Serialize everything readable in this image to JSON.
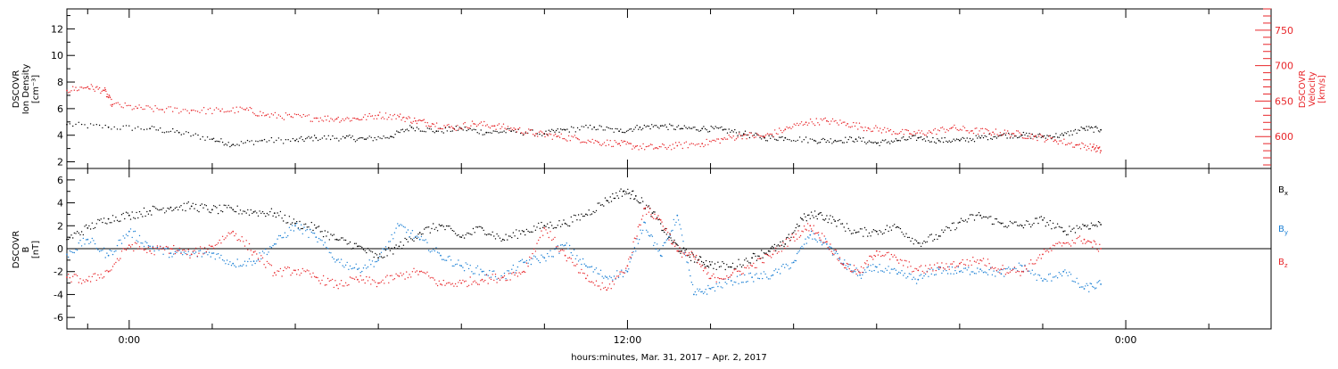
{
  "colors": {
    "black": "#000000",
    "red": "#e8262a",
    "blue": "#1a7fd4"
  },
  "chart_data": [
    {
      "type": "scatter",
      "panel": "top",
      "ylabel": [
        "DSCOVR",
        "Ion Density",
        "[cm⁻³]"
      ],
      "ylabel_right": [
        "DSCOVR",
        "Velocity",
        "[km/s]"
      ],
      "ylim": [
        1.5,
        13.5
      ],
      "ylim_right": [
        555,
        780
      ],
      "yticks": [
        2,
        4,
        6,
        8,
        10,
        12
      ],
      "yticks_right": [
        600,
        650,
        700,
        750
      ],
      "x_unit": "hours since 2017-03-31 00:00",
      "xlim": [
        -1.5,
        27.5
      ],
      "series": [
        {
          "axis": "left",
          "color": "black",
          "points": [
            [
              -1.5,
              4.8
            ],
            [
              -0.5,
              4.6
            ],
            [
              0.5,
              4.5
            ],
            [
              1.2,
              4.2
            ],
            [
              2.0,
              3.7
            ],
            [
              2.5,
              3.3
            ],
            [
              3.2,
              3.6
            ],
            [
              4.0,
              3.6
            ],
            [
              4.5,
              3.8
            ],
            [
              5.2,
              3.8
            ],
            [
              5.7,
              3.7
            ],
            [
              6.3,
              3.9
            ],
            [
              6.8,
              4.6
            ],
            [
              7.4,
              4.3
            ],
            [
              8.0,
              4.5
            ],
            [
              8.6,
              4.2
            ],
            [
              9.2,
              4.3
            ],
            [
              10.0,
              4.1
            ],
            [
              10.5,
              4.4
            ],
            [
              11.2,
              4.6
            ],
            [
              11.8,
              4.3
            ],
            [
              12.3,
              4.6
            ],
            [
              12.8,
              4.7
            ],
            [
              13.3,
              4.5
            ],
            [
              13.8,
              4.5
            ],
            [
              14.3,
              4.4
            ],
            [
              14.8,
              4.1
            ],
            [
              15.3,
              3.8
            ],
            [
              15.8,
              3.8
            ],
            [
              16.5,
              3.6
            ],
            [
              17.0,
              3.6
            ],
            [
              17.5,
              3.7
            ],
            [
              18.0,
              3.4
            ],
            [
              18.5,
              3.6
            ],
            [
              19.0,
              3.8
            ],
            [
              19.5,
              3.6
            ],
            [
              20.0,
              3.6
            ],
            [
              20.5,
              3.8
            ],
            [
              21.0,
              4.0
            ],
            [
              21.5,
              4.0
            ],
            [
              22.0,
              3.9
            ],
            [
              22.5,
              4.0
            ],
            [
              23.0,
              4.5
            ],
            [
              23.4,
              4.4
            ]
          ]
        },
        {
          "axis": "right",
          "color": "red",
          "points": [
            [
              -1.5,
              665
            ],
            [
              -1.0,
              670
            ],
            [
              -0.6,
              665
            ],
            [
              -0.4,
              645
            ],
            [
              0.2,
              640
            ],
            [
              0.8,
              638
            ],
            [
              1.5,
              637
            ],
            [
              2.2,
              636
            ],
            [
              2.8,
              638
            ],
            [
              3.3,
              630
            ],
            [
              3.9,
              628
            ],
            [
              4.5,
              626
            ],
            [
              5.0,
              625
            ],
            [
              5.5,
              625
            ],
            [
              6.0,
              630
            ],
            [
              6.5,
              628
            ],
            [
              6.9,
              622
            ],
            [
              7.3,
              618
            ],
            [
              7.8,
              612
            ],
            [
              8.3,
              618
            ],
            [
              8.8,
              615
            ],
            [
              9.3,
              610
            ],
            [
              9.8,
              604
            ],
            [
              10.3,
              600
            ],
            [
              10.8,
              597
            ],
            [
              11.3,
              592
            ],
            [
              11.8,
              590
            ],
            [
              12.2,
              586
            ],
            [
              12.7,
              584
            ],
            [
              13.2,
              587
            ],
            [
              13.8,
              590
            ],
            [
              14.3,
              596
            ],
            [
              14.8,
              602
            ],
            [
              15.3,
              600
            ],
            [
              15.8,
              610
            ],
            [
              16.3,
              620
            ],
            [
              16.8,
              622
            ],
            [
              17.3,
              618
            ],
            [
              17.8,
              612
            ],
            [
              18.3,
              608
            ],
            [
              18.8,
              604
            ],
            [
              19.3,
              606
            ],
            [
              19.8,
              612
            ],
            [
              20.3,
              608
            ],
            [
              20.8,
              606
            ],
            [
              21.3,
              604
            ],
            [
              21.8,
              600
            ],
            [
              22.3,
              595
            ],
            [
              22.8,
              588
            ],
            [
              23.2,
              585
            ],
            [
              23.4,
              580
            ]
          ]
        }
      ]
    },
    {
      "type": "scatter",
      "panel": "bottom",
      "ylabel": [
        "DSCOVR",
        "B",
        "[nT]"
      ],
      "ylim": [
        -7,
        7
      ],
      "yticks": [
        -6,
        -4,
        -2,
        0,
        2,
        4,
        6
      ],
      "x_unit": "hours since 2017-03-31 00:00",
      "xlim": [
        -1.5,
        27.5
      ],
      "xtick_labels": [
        "0:00",
        "12:00",
        "0:00"
      ],
      "xtick_values": [
        0,
        12,
        24
      ],
      "xlabel": "hours:minutes, Mar. 31, 2017 – Apr. 2, 2017",
      "legend": [
        {
          "name": "Bx",
          "sub": "x",
          "color": "black"
        },
        {
          "name": "By",
          "sub": "y",
          "color": "blue"
        },
        {
          "name": "Bz",
          "sub": "z",
          "color": "red"
        }
      ],
      "series": [
        {
          "name": "Bx",
          "color": "black",
          "points": [
            [
              -1.5,
              0.8
            ],
            [
              -1.0,
              1.8
            ],
            [
              -0.5,
              2.6
            ],
            [
              0.0,
              2.9
            ],
            [
              0.5,
              3.3
            ],
            [
              1.0,
              3.6
            ],
            [
              1.5,
              3.7
            ],
            [
              2.0,
              3.4
            ],
            [
              2.5,
              3.4
            ],
            [
              3.0,
              3.2
            ],
            [
              3.5,
              3.1
            ],
            [
              4.0,
              2.2
            ],
            [
              4.5,
              1.8
            ],
            [
              5.0,
              0.8
            ],
            [
              5.5,
              0.2
            ],
            [
              6.0,
              -0.8
            ],
            [
              6.5,
              0.2
            ],
            [
              7.0,
              1.4
            ],
            [
              7.5,
              2.0
            ],
            [
              8.0,
              1.0
            ],
            [
              8.5,
              1.8
            ],
            [
              9.0,
              0.8
            ],
            [
              9.5,
              1.5
            ],
            [
              10.0,
              2.0
            ],
            [
              10.5,
              2.2
            ],
            [
              11.0,
              3.0
            ],
            [
              11.5,
              4.2
            ],
            [
              11.9,
              5.0
            ],
            [
              12.2,
              4.6
            ],
            [
              12.6,
              3.1
            ],
            [
              13.0,
              1.0
            ],
            [
              13.3,
              -0.2
            ],
            [
              13.7,
              -1.0
            ],
            [
              14.0,
              -1.4
            ],
            [
              14.5,
              -1.6
            ],
            [
              15.0,
              -0.8
            ],
            [
              15.4,
              -0.2
            ],
            [
              15.8,
              0.4
            ],
            [
              16.2,
              2.6
            ],
            [
              16.6,
              3.0
            ],
            [
              17.0,
              2.4
            ],
            [
              17.5,
              1.4
            ],
            [
              18.0,
              1.5
            ],
            [
              18.5,
              1.9
            ],
            [
              19.0,
              0.5
            ],
            [
              19.5,
              1.1
            ],
            [
              20.0,
              2.3
            ],
            [
              20.5,
              2.9
            ],
            [
              21.0,
              2.2
            ],
            [
              21.5,
              2.0
            ],
            [
              22.0,
              2.5
            ],
            [
              22.5,
              1.5
            ],
            [
              23.0,
              2.0
            ],
            [
              23.4,
              2.1
            ]
          ]
        },
        {
          "name": "By",
          "color": "blue",
          "points": [
            [
              -1.5,
              -0.5
            ],
            [
              -1.0,
              0.8
            ],
            [
              -0.5,
              -0.6
            ],
            [
              0.0,
              1.5
            ],
            [
              0.5,
              0.2
            ],
            [
              1.0,
              -0.4
            ],
            [
              1.5,
              -0.5
            ],
            [
              2.0,
              -0.4
            ],
            [
              2.5,
              -1.3
            ],
            [
              3.0,
              -1.1
            ],
            [
              3.5,
              0.4
            ],
            [
              4.0,
              2.0
            ],
            [
              4.5,
              1.0
            ],
            [
              5.0,
              -1.0
            ],
            [
              5.5,
              -1.8
            ],
            [
              6.0,
              -1.0
            ],
            [
              6.5,
              2.0
            ],
            [
              7.0,
              0.8
            ],
            [
              7.5,
              -0.6
            ],
            [
              8.0,
              -1.5
            ],
            [
              8.5,
              -2.0
            ],
            [
              9.0,
              -2.5
            ],
            [
              9.5,
              -1.2
            ],
            [
              10.0,
              -0.8
            ],
            [
              10.5,
              0.3
            ],
            [
              11.0,
              -1.5
            ],
            [
              11.5,
              -2.5
            ],
            [
              12.0,
              -2.0
            ],
            [
              12.4,
              2.3
            ],
            [
              12.8,
              -0.6
            ],
            [
              13.2,
              2.9
            ],
            [
              13.6,
              -4.0
            ],
            [
              14.0,
              -3.5
            ],
            [
              14.5,
              -2.8
            ],
            [
              15.0,
              -2.5
            ],
            [
              15.5,
              -2.3
            ],
            [
              16.0,
              -1.2
            ],
            [
              16.4,
              1.2
            ],
            [
              16.8,
              0.4
            ],
            [
              17.2,
              -1.3
            ],
            [
              17.6,
              -2.3
            ],
            [
              18.0,
              -1.6
            ],
            [
              18.5,
              -2.2
            ],
            [
              19.0,
              -2.7
            ],
            [
              19.5,
              -1.8
            ],
            [
              20.0,
              -2.0
            ],
            [
              20.5,
              -1.8
            ],
            [
              21.0,
              -2.2
            ],
            [
              21.5,
              -1.5
            ],
            [
              22.0,
              -2.8
            ],
            [
              22.5,
              -2.0
            ],
            [
              23.0,
              -3.5
            ],
            [
              23.4,
              -3.1
            ]
          ]
        },
        {
          "name": "Bz",
          "color": "red",
          "points": [
            [
              -1.5,
              -2.5
            ],
            [
              -1.0,
              -2.8
            ],
            [
              -0.5,
              -2.0
            ],
            [
              0.0,
              0.3
            ],
            [
              0.5,
              -0.2
            ],
            [
              1.0,
              0.0
            ],
            [
              1.5,
              -0.5
            ],
            [
              2.0,
              0.2
            ],
            [
              2.5,
              1.5
            ],
            [
              3.0,
              -0.3
            ],
            [
              3.5,
              -2.1
            ],
            [
              4.0,
              -1.9
            ],
            [
              4.5,
              -2.5
            ],
            [
              5.0,
              -3.2
            ],
            [
              5.5,
              -2.7
            ],
            [
              6.0,
              -3.0
            ],
            [
              6.5,
              -2.4
            ],
            [
              7.0,
              -2.0
            ],
            [
              7.5,
              -3.1
            ],
            [
              8.0,
              -3.0
            ],
            [
              8.5,
              -2.7
            ],
            [
              9.0,
              -2.5
            ],
            [
              9.5,
              -2.0
            ],
            [
              10.0,
              1.8
            ],
            [
              10.5,
              -0.6
            ],
            [
              11.0,
              -2.6
            ],
            [
              11.5,
              -3.6
            ],
            [
              12.0,
              -1.5
            ],
            [
              12.4,
              3.5
            ],
            [
              12.8,
              2.5
            ],
            [
              13.2,
              -0.2
            ],
            [
              13.6,
              -0.7
            ],
            [
              14.0,
              -2.6
            ],
            [
              14.5,
              -2.3
            ],
            [
              15.0,
              -1.5
            ],
            [
              15.5,
              -0.5
            ],
            [
              16.0,
              1.0
            ],
            [
              16.4,
              2.0
            ],
            [
              16.8,
              0.6
            ],
            [
              17.2,
              -1.4
            ],
            [
              17.6,
              -2.1
            ],
            [
              18.0,
              -0.2
            ],
            [
              18.5,
              -1.0
            ],
            [
              19.0,
              -1.9
            ],
            [
              19.5,
              -1.6
            ],
            [
              20.0,
              -1.3
            ],
            [
              20.5,
              -1.0
            ],
            [
              21.0,
              -1.8
            ],
            [
              21.5,
              -2.0
            ],
            [
              22.0,
              -0.5
            ],
            [
              22.5,
              0.5
            ],
            [
              23.0,
              0.8
            ],
            [
              23.4,
              0.0
            ]
          ]
        }
      ]
    }
  ]
}
